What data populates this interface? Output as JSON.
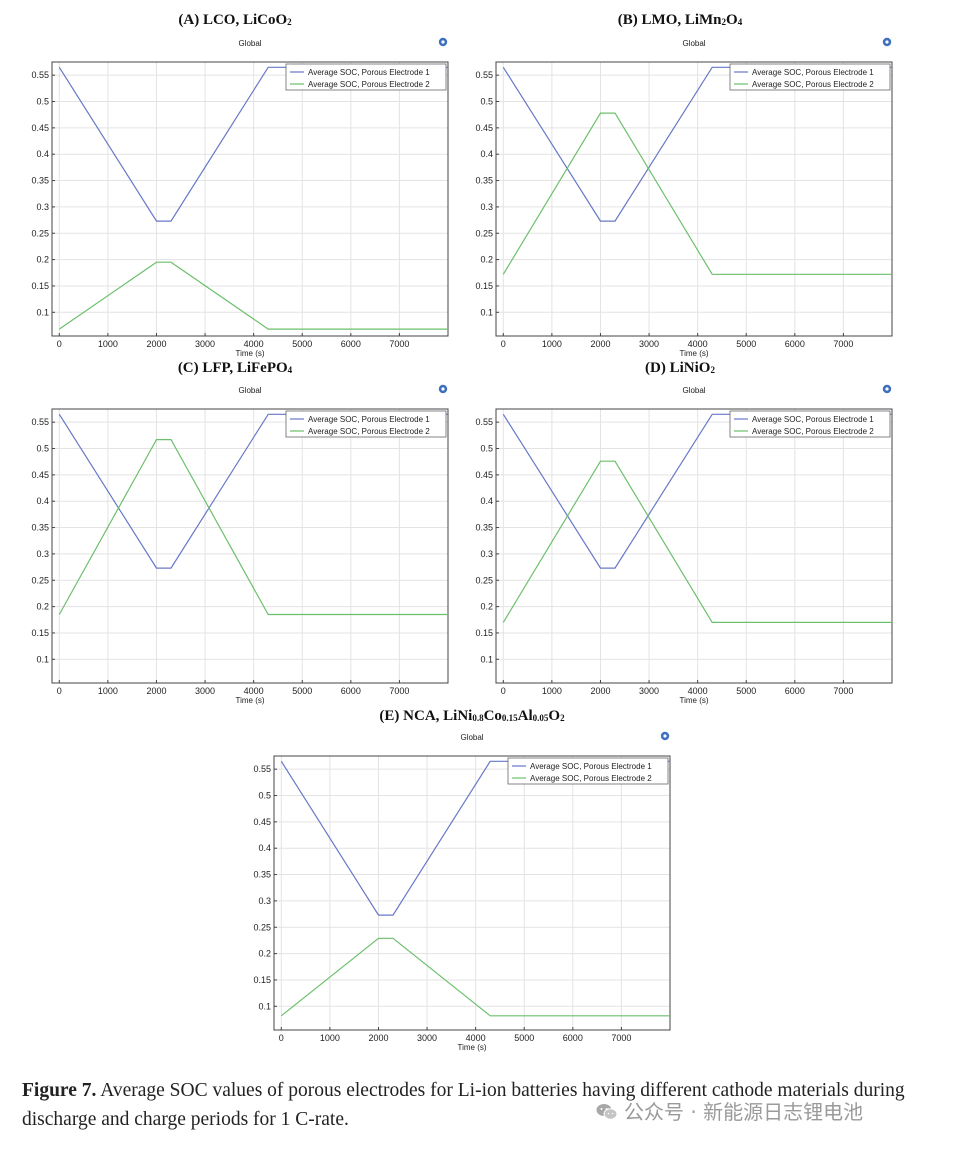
{
  "chart_data": [
    {
      "type": "line",
      "title_main": "(A) LCO, LiCoO",
      "title_subs": [
        "2"
      ],
      "title_tail": "",
      "subtitle": "Global",
      "xlabel": "Time (s)",
      "ylabel": "",
      "xlim": [
        -150,
        8000
      ],
      "ylim": [
        0.055,
        0.575
      ],
      "xticks": [
        0,
        1000,
        2000,
        3000,
        4000,
        5000,
        6000,
        7000
      ],
      "yticks": [
        0.1,
        0.15,
        0.2,
        0.25,
        0.3,
        0.35,
        0.4,
        0.45,
        0.5,
        0.55
      ],
      "grid": true,
      "legend_position": "top-right",
      "series": [
        {
          "name": "Average SOC, Porous Electrode 1",
          "color": "#6878c8",
          "x": [
            0,
            2000,
            2300,
            4300,
            8000
          ],
          "y": [
            0.565,
            0.273,
            0.273,
            0.565,
            0.565
          ]
        },
        {
          "name": "Average SOC, Porous Electrode 2",
          "color": "#6cbf6c",
          "x": [
            0,
            2000,
            2300,
            4300,
            8000
          ],
          "y": [
            0.068,
            0.195,
            0.195,
            0.068,
            0.068
          ]
        }
      ]
    },
    {
      "type": "line",
      "title_main": "(B) LMO, LiMn",
      "title_subs": [
        "2",
        "4"
      ],
      "title_mid": "O",
      "title_tail": "",
      "subtitle": "Global",
      "xlabel": "Time (s)",
      "ylabel": "",
      "xlim": [
        -150,
        8000
      ],
      "ylim": [
        0.055,
        0.575
      ],
      "xticks": [
        0,
        1000,
        2000,
        3000,
        4000,
        5000,
        6000,
        7000
      ],
      "yticks": [
        0.1,
        0.15,
        0.2,
        0.25,
        0.3,
        0.35,
        0.4,
        0.45,
        0.5,
        0.55
      ],
      "grid": true,
      "legend_position": "top-right",
      "series": [
        {
          "name": "Average SOC, Porous Electrode 1",
          "color": "#6878c8",
          "x": [
            0,
            2000,
            2300,
            4300,
            8000
          ],
          "y": [
            0.565,
            0.273,
            0.273,
            0.565,
            0.565
          ]
        },
        {
          "name": "Average SOC, Porous Electrode 2",
          "color": "#6cbf6c",
          "x": [
            0,
            2000,
            2300,
            4300,
            8000
          ],
          "y": [
            0.172,
            0.478,
            0.478,
            0.172,
            0.172
          ]
        }
      ]
    },
    {
      "type": "line",
      "title_main": "(C) LFP, LiFePO",
      "title_subs": [
        "4"
      ],
      "title_tail": "",
      "subtitle": "Global",
      "xlabel": "Time (s)",
      "ylabel": "",
      "xlim": [
        -150,
        8000
      ],
      "ylim": [
        0.055,
        0.575
      ],
      "xticks": [
        0,
        1000,
        2000,
        3000,
        4000,
        5000,
        6000,
        7000
      ],
      "yticks": [
        0.1,
        0.15,
        0.2,
        0.25,
        0.3,
        0.35,
        0.4,
        0.45,
        0.5,
        0.55
      ],
      "grid": true,
      "legend_position": "top-right",
      "series": [
        {
          "name": "Average SOC, Porous Electrode 1",
          "color": "#6878c8",
          "x": [
            0,
            2000,
            2300,
            4300,
            8000
          ],
          "y": [
            0.565,
            0.273,
            0.273,
            0.565,
            0.565
          ]
        },
        {
          "name": "Average SOC, Porous Electrode 2",
          "color": "#6cbf6c",
          "x": [
            0,
            2000,
            2300,
            4300,
            8000
          ],
          "y": [
            0.185,
            0.517,
            0.517,
            0.185,
            0.185
          ]
        }
      ]
    },
    {
      "type": "line",
      "title_main": "(D) LiNiO",
      "title_subs": [
        "2"
      ],
      "title_tail": "",
      "subtitle": "Global",
      "xlabel": "Time (s)",
      "ylabel": "",
      "xlim": [
        -150,
        8000
      ],
      "ylim": [
        0.055,
        0.575
      ],
      "xticks": [
        0,
        1000,
        2000,
        3000,
        4000,
        5000,
        6000,
        7000
      ],
      "yticks": [
        0.1,
        0.15,
        0.2,
        0.25,
        0.3,
        0.35,
        0.4,
        0.45,
        0.5,
        0.55
      ],
      "grid": true,
      "legend_position": "top-right",
      "series": [
        {
          "name": "Average SOC, Porous Electrode 1",
          "color": "#6878c8",
          "x": [
            0,
            2000,
            2300,
            4300,
            8000
          ],
          "y": [
            0.565,
            0.273,
            0.273,
            0.565,
            0.565
          ]
        },
        {
          "name": "Average SOC, Porous Electrode 2",
          "color": "#6cbf6c",
          "x": [
            0,
            2000,
            2300,
            4300,
            8000
          ],
          "y": [
            0.17,
            0.476,
            0.476,
            0.17,
            0.17
          ]
        }
      ]
    },
    {
      "type": "line",
      "title_main": "(E) NCA, LiNi",
      "title_subs": [
        "0.8",
        "0.15",
        "0.05",
        "2"
      ],
      "title_parts": [
        "Co",
        "Al",
        "O"
      ],
      "title_tail": "",
      "subtitle": "Global",
      "xlabel": "Time (s)",
      "ylabel": "",
      "xlim": [
        -150,
        8000
      ],
      "ylim": [
        0.055,
        0.575
      ],
      "xticks": [
        0,
        1000,
        2000,
        3000,
        4000,
        5000,
        6000,
        7000
      ],
      "yticks": [
        0.1,
        0.15,
        0.2,
        0.25,
        0.3,
        0.35,
        0.4,
        0.45,
        0.5,
        0.55
      ],
      "grid": true,
      "legend_position": "top-right",
      "series": [
        {
          "name": "Average SOC, Porous Electrode 1",
          "color": "#6878c8",
          "x": [
            0,
            2000,
            2300,
            4300,
            8000
          ],
          "y": [
            0.565,
            0.273,
            0.273,
            0.565,
            0.565
          ]
        },
        {
          "name": "Average SOC, Porous Electrode 2",
          "color": "#6cbf6c",
          "x": [
            0,
            2000,
            2300,
            4300,
            8000
          ],
          "y": [
            0.082,
            0.229,
            0.229,
            0.082,
            0.082
          ]
        }
      ]
    }
  ],
  "caption": {
    "label": "Figure 7.",
    "text": " Average SOC values of porous electrodes for Li-ion batteries having different cathode materials during discharge and charge periods for 1 C-rate."
  },
  "watermark": {
    "text": "公众号 · 新能源日志锂电池",
    "icon": "wechat-icon"
  },
  "colors": {
    "grid": "#e3e3e3",
    "frame": "#444444",
    "icon_blue": "#3f6fbf"
  }
}
